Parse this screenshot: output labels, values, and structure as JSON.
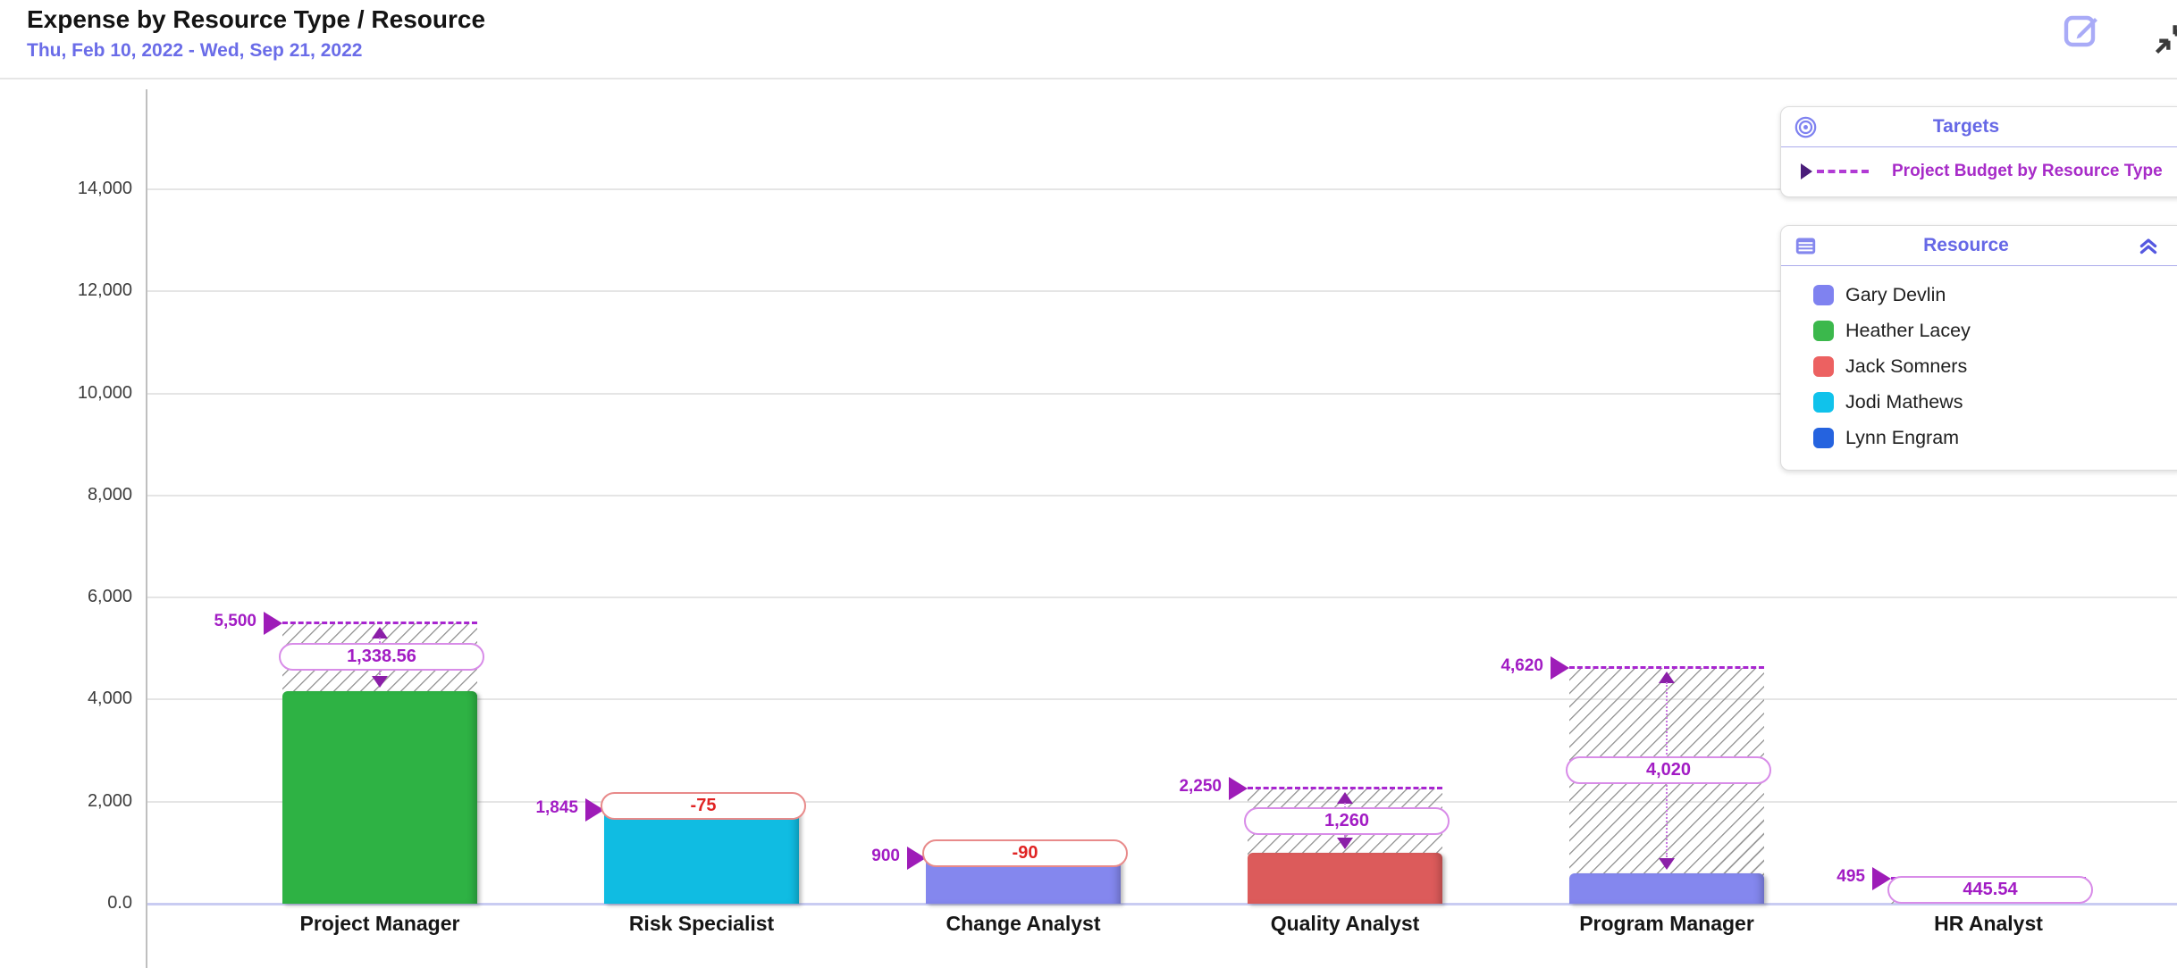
{
  "header": {
    "title": "Expense by Resource Type / Resource",
    "date_range": "Thu, Feb 10, 2022 - Wed, Sep 21, 2022"
  },
  "panels": {
    "targets": {
      "title": "Targets",
      "items": [
        {
          "label": "Project Budget by Resource Type",
          "color": "#A72BC8"
        }
      ]
    },
    "resource": {
      "title": "Resource",
      "items": [
        {
          "label": "Gary Devlin",
          "color": "#7F82F0"
        },
        {
          "label": "Heather Lacey",
          "color": "#3BB84C"
        },
        {
          "label": "Jack Somners",
          "color": "#EC6161"
        },
        {
          "label": "Jodi Mathews",
          "color": "#10C2EB"
        },
        {
          "label": "Lynn Engram",
          "color": "#2563DF"
        }
      ]
    }
  },
  "icons": {
    "edit": "edit-icon",
    "expand": "expand-icon",
    "targets": "target-bullseye-icon",
    "resource": "table-icon",
    "collapse": "collapse-chevrons-icon"
  },
  "colors": {
    "accent": "#6668E6",
    "target_magenta": "#A21CC4",
    "negative_red": "#E02424",
    "gridline": "#E5E5E5",
    "baseline": "#C9CCF2"
  },
  "chart_data": {
    "type": "bar",
    "title": "Expense by Resource Type / Resource",
    "xlabel": "",
    "ylabel": "",
    "ylim": [
      0,
      15960
    ],
    "grid": true,
    "legend_position": "top-right",
    "target_series_name": "Project Budget by Resource Type",
    "y_ticks": [
      "0.0",
      "2,000",
      "4,000",
      "6,000",
      "8,000",
      "10,000",
      "12,000",
      "14,000"
    ],
    "y_tick_values": [
      0,
      2000,
      4000,
      6000,
      8000,
      10000,
      12000,
      14000
    ],
    "categories": [
      "Project Manager",
      "Risk Specialist",
      "Change Analyst",
      "Quality Analyst",
      "Program Manager",
      "HR Analyst"
    ],
    "bars": [
      {
        "category": "Project Manager",
        "value": 4161.44,
        "color": "#2EB244",
        "target": 5500,
        "target_label": "5,500",
        "variance": 1338.56,
        "variance_label": "1,338.56"
      },
      {
        "category": "Risk Specialist",
        "value": 1920,
        "color": "#10BCE2",
        "target": 1845,
        "target_label": "1,845",
        "variance": -75,
        "variance_label": "-75"
      },
      {
        "category": "Change Analyst",
        "value": 990,
        "color": "#8487EE",
        "target": 900,
        "target_label": "900",
        "variance": -90,
        "variance_label": "-90"
      },
      {
        "category": "Quality Analyst",
        "value": 990,
        "color": "#DC5B5B",
        "target": 2250,
        "target_label": "2,250",
        "variance": 1260,
        "variance_label": "1,260"
      },
      {
        "category": "Program Manager",
        "value": 600,
        "color": "#8487EE",
        "target": 4620,
        "target_label": "4,620",
        "variance": 4020,
        "variance_label": "4,020"
      },
      {
        "category": "HR Analyst",
        "value": 49.46,
        "color": null,
        "target": 495,
        "target_label": "495",
        "variance": 445.54,
        "variance_label": "445.54"
      }
    ]
  }
}
